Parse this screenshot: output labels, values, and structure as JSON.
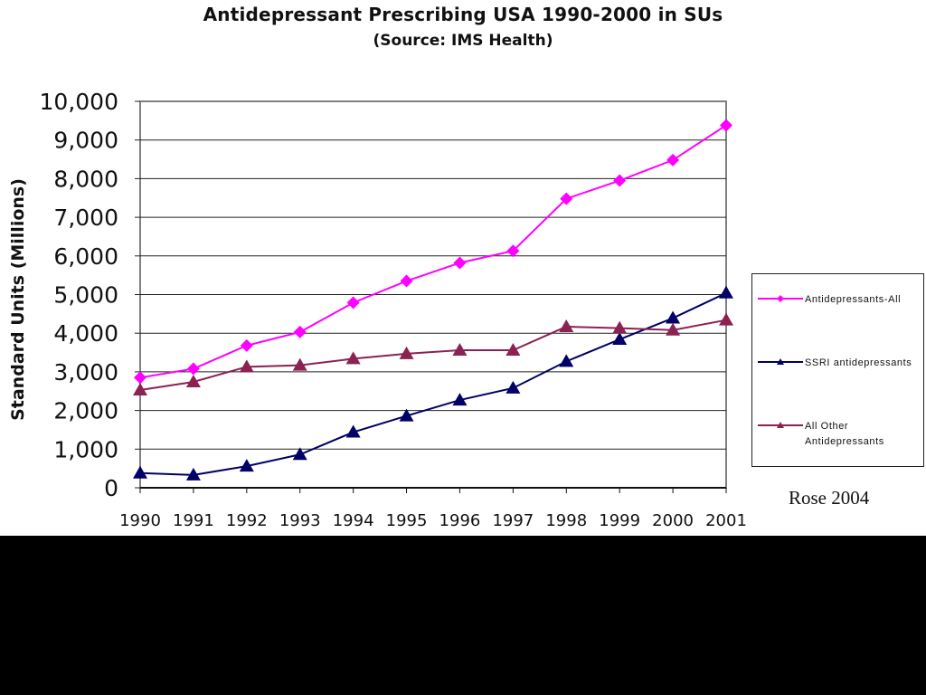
{
  "chart_data": {
    "type": "line",
    "title": "Antidepressant Prescribing USA 1990-2000 in SUs",
    "subtitle": "(Source: IMS Health)",
    "ylabel": "Standard Units (Millions)",
    "xlabel": "",
    "categories": [
      "1990",
      "1991",
      "1992",
      "1993",
      "1994",
      "1995",
      "1996",
      "1997",
      "1998",
      "1999",
      "2000",
      "2001"
    ],
    "ylim": [
      0,
      10000
    ],
    "yticks": [
      "0",
      "1,000",
      "2,000",
      "3,000",
      "4,000",
      "5,000",
      "6,000",
      "7,000",
      "8,000",
      "9,000",
      "10,000"
    ],
    "grid": true,
    "legend_position": "right",
    "series": [
      {
        "name": "Antidepressants-All",
        "color": "#ff00ff",
        "marker": "diamond",
        "values": [
          2850,
          3080,
          3680,
          4030,
          4790,
          5350,
          5820,
          6130,
          7480,
          7950,
          8480,
          9380
        ]
      },
      {
        "name": "SSRI antidepressants",
        "color": "#000066",
        "marker": "triangle",
        "values": [
          380,
          330,
          560,
          860,
          1440,
          1860,
          2270,
          2580,
          3270,
          3840,
          4390,
          5040
        ]
      },
      {
        "name": "All Other Antidepressants",
        "color": "#8b2252",
        "marker": "triangle",
        "values": [
          2530,
          2740,
          3130,
          3170,
          3340,
          3470,
          3560,
          3560,
          4170,
          4130,
          4080,
          4340
        ]
      }
    ]
  },
  "legend": {
    "labels": [
      "Antidepressants-All",
      "SSRI antidepressants",
      "All Other\nAntidepressants"
    ]
  },
  "credit": "Rose 2004"
}
